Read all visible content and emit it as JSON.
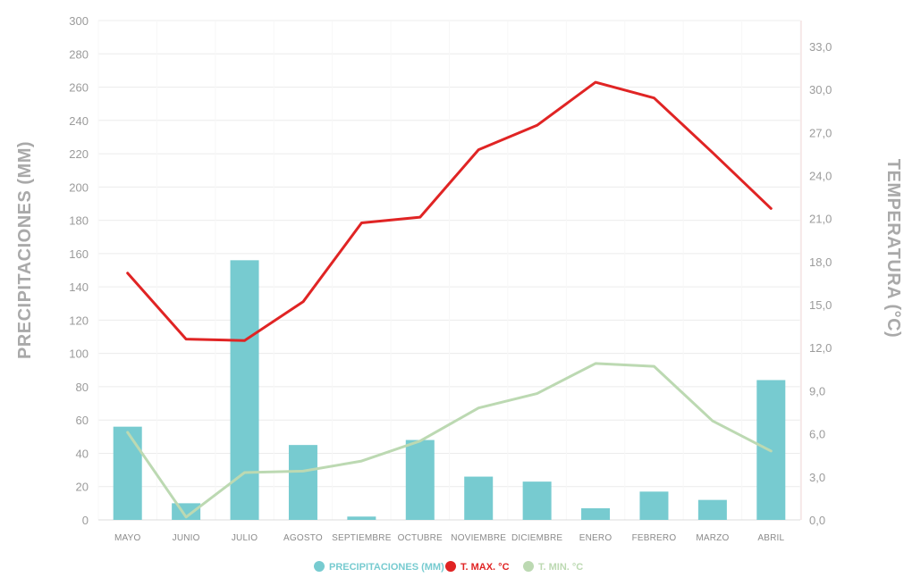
{
  "chart_data": {
    "type": "bar",
    "categories": [
      "MAYO",
      "JUNIO",
      "JULIO",
      "AGOSTO",
      "SEPTIEMBRE",
      "OCTUBRE",
      "NOVIEMBRE",
      "DICIEMBRE",
      "ENERO",
      "FEBRERO",
      "MARZO",
      "ABRIL"
    ],
    "series": [
      {
        "name": "PRECIPITACIONES (MM)",
        "type": "bar",
        "axis": "left",
        "color": "#77cbd0",
        "values": [
          56,
          10,
          156,
          45,
          2,
          48,
          26,
          23,
          7,
          17,
          12,
          84
        ]
      },
      {
        "name": "T. MAX. °C",
        "type": "line",
        "axis": "right",
        "color": "#e02424",
        "values": [
          17.2,
          12.6,
          12.5,
          15.2,
          20.7,
          21.1,
          25.8,
          27.5,
          30.5,
          29.4,
          25.6,
          21.7
        ]
      },
      {
        "name": "T. MIN. °C",
        "type": "line",
        "axis": "right",
        "color": "#bcd9b2",
        "values": [
          6.1,
          0.2,
          3.3,
          3.4,
          4.1,
          5.5,
          7.8,
          8.8,
          10.9,
          10.7,
          6.9,
          4.8
        ]
      }
    ],
    "ylabel": "PRECIPITACIONES (MM)",
    "ylabel_right": "TEMPERATURA (°C)",
    "ylim": [
      0,
      300
    ],
    "yticks": [
      "0",
      "20",
      "40",
      "60",
      "80",
      "100",
      "120",
      "140",
      "160",
      "180",
      "200",
      "220",
      "240",
      "260",
      "280",
      "300"
    ],
    "ylim_right": [
      0,
      34.8
    ],
    "yticks_right": [
      "0,0",
      "3,0",
      "6,0",
      "9,0",
      "12,0",
      "15,0",
      "18,0",
      "21,0",
      "24,0",
      "27,0",
      "30,0",
      "33,0"
    ],
    "legend": {
      "position": "bottom"
    },
    "grid": true
  }
}
